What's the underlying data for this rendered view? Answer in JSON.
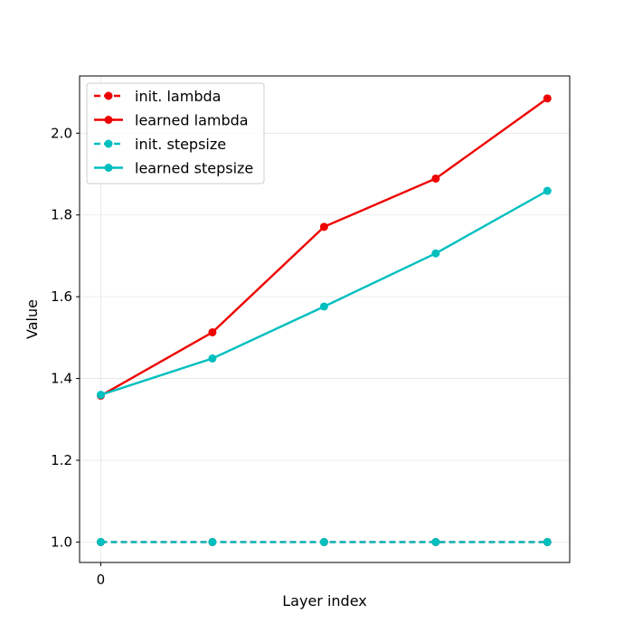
{
  "chart_data": {
    "type": "line",
    "xlabel": "Layer index",
    "ylabel": "Value",
    "x": [
      0,
      1,
      2,
      3,
      4
    ],
    "x_tick_values": [
      0
    ],
    "x_tick_labels": [
      "0"
    ],
    "xlim": [
      -0.19,
      4.2
    ],
    "ylim": [
      0.95,
      2.14
    ],
    "y_ticks": [
      1.0,
      1.2,
      1.4,
      1.6,
      1.8,
      2.0
    ],
    "y_tick_labels": [
      "1.0",
      "1.2",
      "1.4",
      "1.6",
      "1.8",
      "2.0"
    ],
    "grid": true,
    "legend_position": "top-left",
    "series": [
      {
        "name": "init. lambda",
        "values": [
          1.0,
          1.0,
          1.0,
          1.0,
          1.0
        ],
        "color": "#ee0000",
        "line_style": "dashed",
        "marker": "circle"
      },
      {
        "name": "learned lambda",
        "values": [
          1.358,
          1.513,
          1.771,
          1.889,
          2.085
        ],
        "color": "#ee0000",
        "line_style": "solid",
        "marker": "circle"
      },
      {
        "name": "init. stepsize",
        "values": [
          1.0,
          1.0,
          1.0,
          1.0,
          1.0
        ],
        "color": "#00bfbf",
        "line_style": "dashed",
        "marker": "circle"
      },
      {
        "name": "learned stepsize",
        "values": [
          1.36,
          1.449,
          1.576,
          1.706,
          1.859
        ],
        "color": "#00bfbf",
        "line_style": "solid",
        "marker": "circle"
      }
    ]
  }
}
